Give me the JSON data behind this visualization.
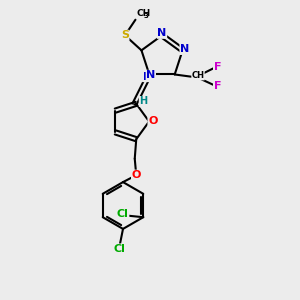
{
  "bg_color": "#ececec",
  "bond_color": "#000000",
  "bond_lw": 1.5,
  "atom_colors": {
    "N": "#0000cc",
    "O": "#ff0000",
    "S": "#ccaa00",
    "F": "#cc00cc",
    "Cl": "#00aa00",
    "C": "#000000",
    "H": "#008888"
  },
  "fontsize": 8
}
